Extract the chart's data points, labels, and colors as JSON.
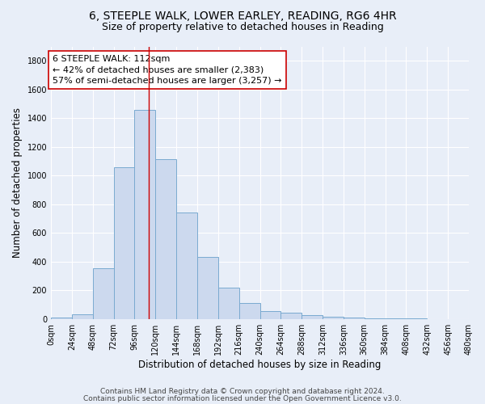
{
  "title1": "6, STEEPLE WALK, LOWER EARLEY, READING, RG6 4HR",
  "title2": "Size of property relative to detached houses in Reading",
  "xlabel": "Distribution of detached houses by size in Reading",
  "ylabel": "Number of detached properties",
  "bar_values": [
    10,
    35,
    355,
    1060,
    1460,
    1115,
    745,
    435,
    220,
    110,
    55,
    45,
    30,
    17,
    10,
    6,
    3,
    2,
    1,
    1
  ],
  "bin_edges": [
    0,
    24,
    48,
    72,
    96,
    120,
    144,
    168,
    192,
    216,
    240,
    264,
    288,
    312,
    336,
    360,
    384,
    408,
    432,
    456,
    480
  ],
  "tick_labels": [
    "0sqm",
    "24sqm",
    "48sqm",
    "72sqm",
    "96sqm",
    "120sqm",
    "144sqm",
    "168sqm",
    "192sqm",
    "216sqm",
    "240sqm",
    "264sqm",
    "288sqm",
    "312sqm",
    "336sqm",
    "360sqm",
    "384sqm",
    "408sqm",
    "432sqm",
    "456sqm",
    "480sqm"
  ],
  "bar_facecolor": "#ccd9ee",
  "bar_edgecolor": "#7aaad0",
  "property_size": 112,
  "vline_color": "#cc0000",
  "annotation_line1": "6 STEEPLE WALK: 112sqm",
  "annotation_line2": "← 42% of detached houses are smaller (2,383)",
  "annotation_line3": "57% of semi-detached houses are larger (3,257) →",
  "ylim": [
    0,
    1900
  ],
  "yticks": [
    0,
    200,
    400,
    600,
    800,
    1000,
    1200,
    1400,
    1600,
    1800
  ],
  "background_color": "#e8eef8",
  "plot_background": "#e8eef8",
  "grid_color": "#ffffff",
  "footer1": "Contains HM Land Registry data © Crown copyright and database right 2024.",
  "footer2": "Contains public sector information licensed under the Open Government Licence v3.0.",
  "title1_fontsize": 10,
  "title2_fontsize": 9,
  "xlabel_fontsize": 8.5,
  "ylabel_fontsize": 8.5,
  "tick_fontsize": 7,
  "annotation_fontsize": 8,
  "footer_fontsize": 6.5
}
